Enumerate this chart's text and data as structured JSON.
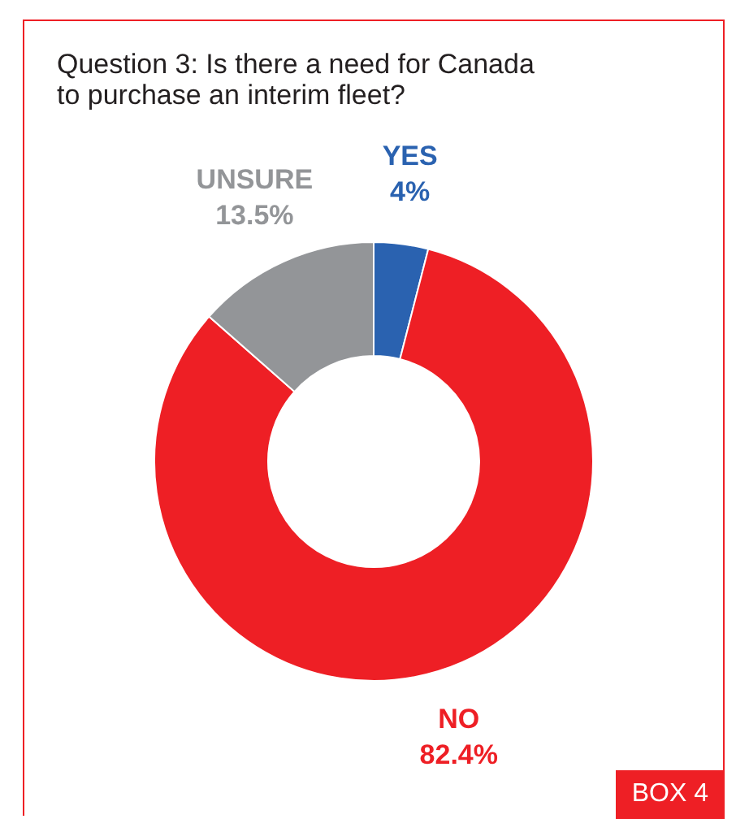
{
  "chart_data": {
    "type": "donut",
    "title": "Question 3: Is there a need for Canada to purchase an interim fleet?",
    "categories": [
      "YES",
      "NO",
      "UNSURE"
    ],
    "values": [
      4,
      82.4,
      13.5
    ],
    "colors": [
      "#2a62b0",
      "#ee1f25",
      "#939598"
    ],
    "value_labels": [
      "4%",
      "82.4%",
      "13.5%"
    ],
    "legend": false,
    "annotations": [
      "BOX 4"
    ]
  }
}
